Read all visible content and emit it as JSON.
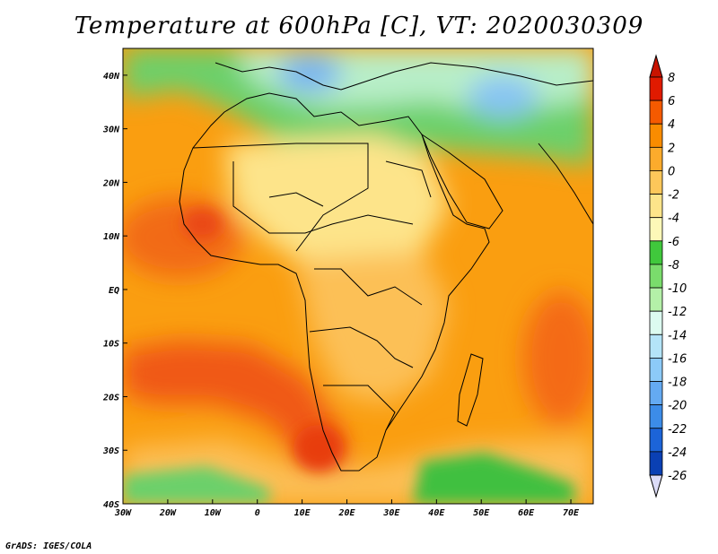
{
  "title": "Temperature at 600hPa [C], VT: 2020030309",
  "footer": "GrADS: IGES/COLA",
  "map": {
    "lon_range": [
      -30,
      75
    ],
    "lat_range": [
      -40,
      45
    ],
    "x_ticks": [
      {
        "value": -30,
        "label": "30W"
      },
      {
        "value": -20,
        "label": "20W"
      },
      {
        "value": -10,
        "label": "10W"
      },
      {
        "value": 0,
        "label": "0"
      },
      {
        "value": 10,
        "label": "10E"
      },
      {
        "value": 20,
        "label": "20E"
      },
      {
        "value": 30,
        "label": "30E"
      },
      {
        "value": 40,
        "label": "40E"
      },
      {
        "value": 50,
        "label": "50E"
      },
      {
        "value": 60,
        "label": "60E"
      },
      {
        "value": 70,
        "label": "70E"
      }
    ],
    "y_ticks": [
      {
        "value": 40,
        "label": "40N"
      },
      {
        "value": 30,
        "label": "30N"
      },
      {
        "value": 20,
        "label": "20N"
      },
      {
        "value": 10,
        "label": "10N"
      },
      {
        "value": 0,
        "label": "EQ"
      },
      {
        "value": -10,
        "label": "10S"
      },
      {
        "value": -20,
        "label": "20S"
      },
      {
        "value": -30,
        "label": "30S"
      },
      {
        "value": -40,
        "label": "40S"
      }
    ]
  },
  "colorbar": {
    "labels": [
      "8",
      "6",
      "4",
      "2",
      "0",
      "-2",
      "-4",
      "-6",
      "-8",
      "-10",
      "-12",
      "-14",
      "-16",
      "-18",
      "-20",
      "-22",
      "-24",
      "-26"
    ],
    "colors": [
      "#e01a00",
      "#f55a00",
      "#fa8c00",
      "#fcab2c",
      "#fdc75a",
      "#fde48a",
      "#fdf8b8",
      "#40c83c",
      "#7adc6c",
      "#b4f0a8",
      "#dcfbf0",
      "#b4e4f8",
      "#8ccaf8",
      "#64aaf2",
      "#3c8ce8",
      "#1c64d8",
      "#0a40b4",
      "#081e78"
    ],
    "over_color": "#c81400",
    "under_color": "#dcdcf8"
  }
}
